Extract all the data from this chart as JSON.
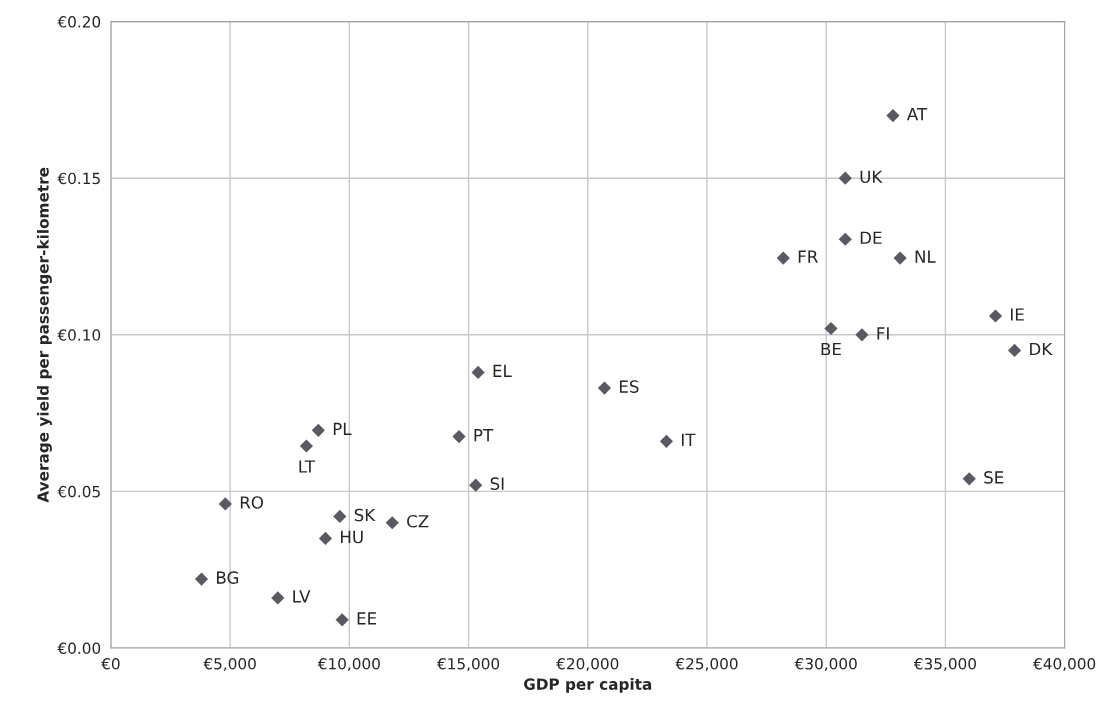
{
  "chart_data": {
    "type": "scatter",
    "xlabel": "GDP per capita",
    "ylabel": "Average yield per passenger-kilometre",
    "x": [
      32800,
      30800,
      30800,
      28200,
      33100,
      37100,
      30200,
      31500,
      37900,
      36000,
      15400,
      20700,
      14600,
      23300,
      15300,
      8700,
      8200,
      4800,
      9600,
      11800,
      9000,
      3800,
      7000,
      9700
    ],
    "series": [
      {
        "color": "#595963",
        "values": [
          0.17,
          0.15,
          0.1305,
          0.1245,
          0.1245,
          0.106,
          0.102,
          0.1,
          0.095,
          0.054,
          0.088,
          0.083,
          0.0675,
          0.066,
          0.052,
          0.0695,
          0.0645,
          0.046,
          0.042,
          0.04,
          0.035,
          0.022,
          0.016,
          0.009
        ]
      }
    ],
    "annotations": [
      {
        "text": "AT",
        "x": 32800,
        "y": 0.17
      },
      {
        "text": "UK",
        "x": 30800,
        "y": 0.15
      },
      {
        "text": "DE",
        "x": 30800,
        "y": 0.1305
      },
      {
        "text": "FR",
        "x": 28200,
        "y": 0.1245
      },
      {
        "text": "NL",
        "x": 33100,
        "y": 0.1245
      },
      {
        "text": "IE",
        "x": 37100,
        "y": 0.106
      },
      {
        "text": "BE",
        "x": 30200,
        "y": 0.102
      },
      {
        "text": "FI",
        "x": 31500,
        "y": 0.1
      },
      {
        "text": "DK",
        "x": 37900,
        "y": 0.095
      },
      {
        "text": "SE",
        "x": 36000,
        "y": 0.054
      },
      {
        "text": "EL",
        "x": 15400,
        "y": 0.088
      },
      {
        "text": "ES",
        "x": 20700,
        "y": 0.083
      },
      {
        "text": "PT",
        "x": 14600,
        "y": 0.0675
      },
      {
        "text": "IT",
        "x": 23300,
        "y": 0.066
      },
      {
        "text": "SI",
        "x": 15300,
        "y": 0.052
      },
      {
        "text": "PL",
        "x": 8700,
        "y": 0.0695
      },
      {
        "text": "LT",
        "x": 8200,
        "y": 0.0645
      },
      {
        "text": "RO",
        "x": 4800,
        "y": 0.046
      },
      {
        "text": "SK",
        "x": 9600,
        "y": 0.042
      },
      {
        "text": "CZ",
        "x": 11800,
        "y": 0.04
      },
      {
        "text": "HU",
        "x": 9000,
        "y": 0.035
      },
      {
        "text": "BG",
        "x": 3800,
        "y": 0.022
      },
      {
        "text": "LV",
        "x": 7000,
        "y": 0.016
      },
      {
        "text": "EE",
        "x": 9700,
        "y": 0.009
      }
    ],
    "xlim": [
      0,
      40000
    ],
    "xticks": [
      {
        "value": 0,
        "label": "€0"
      },
      {
        "value": 5000,
        "label": "€5,000"
      },
      {
        "value": 10000,
        "label": "€10,000"
      },
      {
        "value": 15000,
        "label": "€15,000"
      },
      {
        "value": 20000,
        "label": "€20,000"
      },
      {
        "value": 25000,
        "label": "€25,000"
      },
      {
        "value": 30000,
        "label": "€30,000"
      },
      {
        "value": 35000,
        "label": "€35,000"
      },
      {
        "value": 40000,
        "label": "€40,000"
      }
    ],
    "ylim": [
      0,
      0.2
    ],
    "yticks": [
      {
        "value": 0,
        "label": "€0.00"
      },
      {
        "value": 0.05,
        "label": "€0.05"
      },
      {
        "value": 0.1,
        "label": "€0.10"
      },
      {
        "value": 0.15,
        "label": "€0.15"
      },
      {
        "value": 0.2,
        "label": "€0.20"
      }
    ],
    "grid": true,
    "marker": "diamond",
    "legend": false
  }
}
